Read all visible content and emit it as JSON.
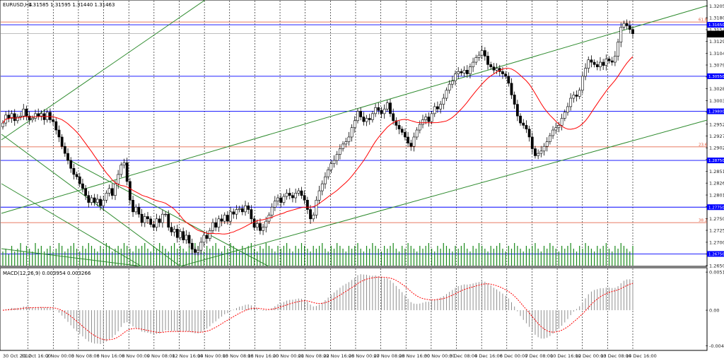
{
  "header": {
    "symbol_label": "EURUSD,H4",
    "ohlc_label": "1.31585 1.31595 1.31440 1.31463"
  },
  "macd_header": {
    "label": "MACD(12,26,9) 0.003954 0.003266"
  },
  "colors": {
    "up_candle": "#000000",
    "down_candle": "#000000",
    "ma_line": "#ff0000",
    "channel_lines": "#2e8b2e",
    "support_resistance": "#0000ff",
    "fibo_lines": "#e05030",
    "volume_bars": "#1a8a1a",
    "macd_histogram": "#909090",
    "macd_signal": "#ff0000",
    "grid": "#000000"
  },
  "chart_data": {
    "type": "candlestick",
    "symbol": "EURUSD",
    "timeframe": "H4",
    "price_axis_ticks": [
      "1.32050",
      "1.31800",
      "1.31545",
      "1.31295",
      "1.31040",
      "1.30790",
      "1.30535",
      "1.30285",
      "1.30030",
      "1.29780",
      "1.29525",
      "1.29275",
      "1.29020",
      "1.28770",
      "1.28515",
      "1.28265",
      "1.28010",
      "1.27760",
      "1.27505",
      "1.27255",
      "1.27000",
      "1.26750",
      "1.26500"
    ],
    "ylim": [
      1.265,
      1.3215
    ],
    "time_axis_ticks": [
      "30 Oct 2012",
      "31 Oct 16:00",
      "2 Nov 00:00",
      "5 Nov 08:00",
      "6 Nov 16:00",
      "8 Nov 00:00",
      "9 Nov 08:00",
      "12 Nov 16:00",
      "14 Nov 00:00",
      "15 Nov 08:00",
      "16 Nov 16:00",
      "20 Nov 00:00",
      "21 Nov 08:00",
      "22 Nov 16:00",
      "26 Nov 00:00",
      "27 Nov 08:00",
      "28 Nov 16:00",
      "30 Nov 00:00",
      "3 Dec 08:00",
      "4 Dec 16:00",
      "6 Dec 00:00",
      "7 Dec 08:00",
      "10 Dec 16:00",
      "12 Dec 00:00",
      "13 Dec 08:00",
      "14 Dec 16:00"
    ],
    "horizontal_levels": [
      {
        "label": "1.31650",
        "value": 1.3165
      },
      {
        "label": "1.31463",
        "value": 1.31463
      },
      {
        "label": "1.30550",
        "value": 1.3055
      },
      {
        "label": "1.29800",
        "value": 1.298
      },
      {
        "label": "1.28750",
        "value": 1.2875
      },
      {
        "label": "1.27750",
        "value": 1.2775
      },
      {
        "label": "1.26750",
        "value": 1.2675
      }
    ],
    "fibo_levels": [
      {
        "label": "61.8",
        "value": 1.3171
      },
      {
        "label": "23.6",
        "value": 1.2904
      },
      {
        "label": "38.2",
        "value": 1.2742
      }
    ],
    "closes": [
      1.2955,
      1.2972,
      1.2965,
      1.2975,
      1.296,
      1.2968,
      1.297,
      1.2985,
      1.297,
      1.2962,
      1.2965,
      1.2975,
      1.297,
      1.2975,
      1.2962,
      1.2978,
      1.2962,
      1.2958,
      1.294,
      1.2925,
      1.2905,
      1.289,
      1.2875,
      1.2858,
      1.2845,
      1.284,
      1.2825,
      1.2815,
      1.28,
      1.2785,
      1.2795,
      1.2785,
      1.2792,
      1.2778,
      1.279,
      1.2805,
      1.2815,
      1.28,
      1.2825,
      1.2845,
      1.2865,
      1.287,
      1.283,
      1.279,
      1.2765,
      1.2775,
      1.276,
      1.2742,
      1.2755,
      1.275,
      1.2738,
      1.2732,
      1.275,
      1.2742,
      1.276,
      1.276,
      1.2732,
      1.2722,
      1.2728,
      1.271,
      1.2723,
      1.2705,
      1.2715,
      1.2698,
      1.2685,
      1.2678,
      1.2683,
      1.27,
      1.2715,
      1.2708,
      1.2725,
      1.2742,
      1.2732,
      1.275,
      1.2745,
      1.2758,
      1.2745,
      1.2765,
      1.276,
      1.277,
      1.2772,
      1.2765,
      1.2778,
      1.277,
      1.275,
      1.2732,
      1.274,
      1.2725,
      1.2732,
      1.2745,
      1.2758,
      1.2775,
      1.2788,
      1.2795,
      1.2785,
      1.2798,
      1.2805,
      1.28,
      1.2795,
      1.2805,
      1.281,
      1.28,
      1.279,
      1.277,
      1.275,
      1.2758,
      1.279,
      1.281,
      1.2825,
      1.284,
      1.2855,
      1.2868,
      1.2875,
      1.2888,
      1.29,
      1.291,
      1.2915,
      1.2925,
      1.2945,
      1.296,
      1.298,
      1.2968,
      1.2958,
      1.2965,
      1.2962,
      1.2975,
      1.2988,
      1.2982,
      1.2975,
      1.2985,
      1.2998,
      1.2975,
      1.296,
      1.295,
      1.2942,
      1.2935,
      1.2925,
      1.2912,
      1.2905,
      1.2925,
      1.294,
      1.2952,
      1.2962,
      1.2968,
      1.2958,
      1.2975,
      1.299,
      1.2985,
      1.2995,
      1.3008,
      1.3025,
      1.3038,
      1.3045,
      1.306,
      1.3065,
      1.3062,
      1.3068,
      1.306,
      1.3075,
      1.3085,
      1.3095,
      1.31,
      1.311,
      1.3098,
      1.308,
      1.3075,
      1.3068,
      1.3072,
      1.3065,
      1.306,
      1.3055,
      1.304,
      1.3015,
      1.2995,
      1.297,
      1.2955,
      1.295,
      1.2942,
      1.2925,
      1.29,
      1.2885,
      1.289,
      1.2895,
      1.2905,
      1.2915,
      1.2928,
      1.294,
      1.2945,
      1.295,
      1.2965,
      1.2978,
      1.299,
      1.3008,
      1.3015,
      1.3012,
      1.3025,
      1.3055,
      1.3072,
      1.309,
      1.3085,
      1.308,
      1.3075,
      1.3085,
      1.3078,
      1.3092,
      1.3088,
      1.3085,
      1.3098,
      1.3128,
      1.316,
      1.3168,
      1.3163,
      1.3155,
      1.3146
    ],
    "ma_period_note": "",
    "volumes": [
      3,
      4,
      2,
      5,
      3,
      4,
      6,
      3,
      5,
      4,
      3,
      6,
      4,
      5,
      3,
      4,
      5,
      3,
      4,
      6,
      5,
      3,
      4,
      5,
      6,
      4,
      3,
      5,
      4,
      6,
      5,
      4,
      3,
      5,
      4,
      6,
      5,
      3,
      4,
      5,
      4,
      6,
      5,
      4,
      3,
      5,
      4,
      5,
      6,
      4,
      3,
      5,
      4,
      6,
      5,
      4,
      3,
      5,
      6,
      4,
      5,
      4,
      3,
      5,
      4,
      6,
      5,
      4,
      3,
      5,
      4,
      5,
      6,
      4,
      3,
      5,
      4,
      6,
      5,
      4,
      3,
      5,
      4,
      5,
      6,
      4,
      3,
      5,
      4,
      6,
      5,
      4,
      3,
      5,
      4,
      5,
      6,
      4,
      3,
      5,
      4,
      6,
      5,
      4,
      3,
      5,
      4,
      5,
      6,
      4,
      3,
      5,
      4,
      6,
      5,
      4,
      3,
      5,
      4,
      5,
      6,
      4,
      3,
      5,
      4,
      6,
      5,
      4,
      3,
      5,
      4,
      5,
      6,
      4,
      3,
      5,
      4,
      6,
      5,
      4,
      3,
      5,
      4,
      5,
      6,
      4,
      3,
      5,
      4,
      6,
      5,
      4,
      3,
      5,
      4,
      5,
      6,
      4,
      3,
      5,
      4,
      6,
      5,
      4,
      3,
      5,
      4,
      5,
      6,
      4,
      3,
      5,
      4,
      6,
      5,
      4,
      3,
      5,
      4,
      5,
      6,
      4,
      3,
      5,
      4,
      6,
      5,
      4,
      3,
      5,
      4,
      5,
      6,
      4,
      3,
      5,
      4,
      6,
      5,
      4,
      3,
      5,
      4,
      5,
      6,
      4,
      3,
      5,
      4,
      6,
      5,
      4,
      3,
      5
    ],
    "macd_axis_ticks": [
      "0.005110",
      "0.00",
      "-0.004767"
    ],
    "macd_ylim": [
      -0.0052,
      0.0055
    ]
  }
}
